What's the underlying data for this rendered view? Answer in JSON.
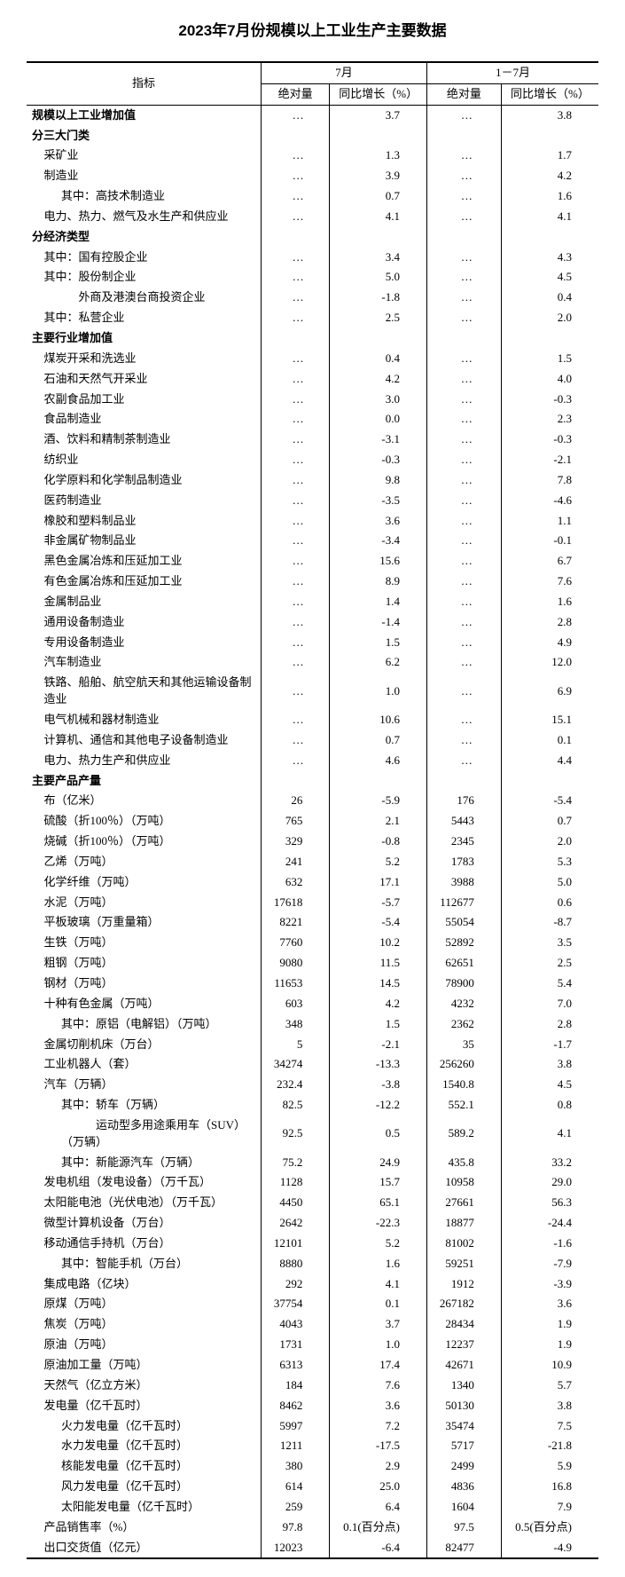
{
  "title": "2023年7月份规模以上工业生产主要数据",
  "header": {
    "indicator": "指标",
    "period1": "7月",
    "period2": "1－7月",
    "abs": "绝对量",
    "yoy": "同比增长（%）"
  },
  "dots": "…",
  "rows": [
    {
      "label": "规模以上工业增加值",
      "bold": true,
      "indent": 0,
      "v": [
        "…",
        "3.7",
        "…",
        "3.8"
      ]
    },
    {
      "label": "分三大门类",
      "bold": true,
      "indent": 0,
      "v": [
        "",
        "",
        "",
        ""
      ]
    },
    {
      "label": "采矿业",
      "indent": 1,
      "v": [
        "…",
        "1.3",
        "…",
        "1.7"
      ]
    },
    {
      "label": "制造业",
      "indent": 1,
      "v": [
        "…",
        "3.9",
        "…",
        "4.2"
      ]
    },
    {
      "label": "其中：高技术制造业",
      "indent": 2,
      "v": [
        "…",
        "0.7",
        "…",
        "1.6"
      ]
    },
    {
      "label": "电力、热力、燃气及水生产和供应业",
      "indent": 1,
      "v": [
        "…",
        "4.1",
        "…",
        "4.1"
      ]
    },
    {
      "label": "分经济类型",
      "bold": true,
      "indent": 0,
      "v": [
        "",
        "",
        "",
        ""
      ]
    },
    {
      "label": "其中：国有控股企业",
      "indent": 1,
      "v": [
        "…",
        "3.4",
        "…",
        "4.3"
      ]
    },
    {
      "label": "其中：股份制企业",
      "indent": 1,
      "v": [
        "…",
        "5.0",
        "…",
        "4.5"
      ]
    },
    {
      "label": "　　　外商及港澳台商投资企业",
      "indent": 1,
      "v": [
        "…",
        "-1.8",
        "…",
        "0.4"
      ]
    },
    {
      "label": "其中：私营企业",
      "indent": 1,
      "v": [
        "…",
        "2.5",
        "…",
        "2.0"
      ]
    },
    {
      "label": "主要行业增加值",
      "bold": true,
      "indent": 0,
      "v": [
        "",
        "",
        "",
        ""
      ]
    },
    {
      "label": "煤炭开采和洗选业",
      "indent": 1,
      "v": [
        "…",
        "0.4",
        "…",
        "1.5"
      ]
    },
    {
      "label": "石油和天然气开采业",
      "indent": 1,
      "v": [
        "…",
        "4.2",
        "…",
        "4.0"
      ]
    },
    {
      "label": "农副食品加工业",
      "indent": 1,
      "v": [
        "…",
        "3.0",
        "…",
        "-0.3"
      ]
    },
    {
      "label": "食品制造业",
      "indent": 1,
      "v": [
        "…",
        "0.0",
        "…",
        "2.3"
      ]
    },
    {
      "label": "酒、饮料和精制茶制造业",
      "indent": 1,
      "v": [
        "…",
        "-3.1",
        "…",
        "-0.3"
      ]
    },
    {
      "label": "纺织业",
      "indent": 1,
      "v": [
        "…",
        "-0.3",
        "…",
        "-2.1"
      ]
    },
    {
      "label": "化学原料和化学制品制造业",
      "indent": 1,
      "v": [
        "…",
        "9.8",
        "…",
        "7.8"
      ]
    },
    {
      "label": "医药制造业",
      "indent": 1,
      "v": [
        "…",
        "-3.5",
        "…",
        "-4.6"
      ]
    },
    {
      "label": "橡胶和塑料制品业",
      "indent": 1,
      "v": [
        "…",
        "3.6",
        "…",
        "1.1"
      ]
    },
    {
      "label": "非金属矿物制品业",
      "indent": 1,
      "v": [
        "…",
        "-3.4",
        "…",
        "-0.1"
      ]
    },
    {
      "label": "黑色金属冶炼和压延加工业",
      "indent": 1,
      "v": [
        "…",
        "15.6",
        "…",
        "6.7"
      ]
    },
    {
      "label": "有色金属冶炼和压延加工业",
      "indent": 1,
      "v": [
        "…",
        "8.9",
        "…",
        "7.6"
      ]
    },
    {
      "label": "金属制品业",
      "indent": 1,
      "v": [
        "…",
        "1.4",
        "…",
        "1.6"
      ]
    },
    {
      "label": "通用设备制造业",
      "indent": 1,
      "v": [
        "…",
        "-1.4",
        "…",
        "2.8"
      ]
    },
    {
      "label": "专用设备制造业",
      "indent": 1,
      "v": [
        "…",
        "1.5",
        "…",
        "4.9"
      ]
    },
    {
      "label": "汽车制造业",
      "indent": 1,
      "v": [
        "…",
        "6.2",
        "…",
        "12.0"
      ]
    },
    {
      "label": "铁路、船舶、航空航天和其他运输设备制造业",
      "indent": 1,
      "v": [
        "…",
        "1.0",
        "…",
        "6.9"
      ]
    },
    {
      "label": "电气机械和器材制造业",
      "indent": 1,
      "v": [
        "…",
        "10.6",
        "…",
        "15.1"
      ]
    },
    {
      "label": "计算机、通信和其他电子设备制造业",
      "indent": 1,
      "v": [
        "…",
        "0.7",
        "…",
        "0.1"
      ]
    },
    {
      "label": "电力、热力生产和供应业",
      "indent": 1,
      "v": [
        "…",
        "4.6",
        "…",
        "4.4"
      ]
    },
    {
      "label": "主要产品产量",
      "bold": true,
      "indent": 0,
      "v": [
        "",
        "",
        "",
        ""
      ]
    },
    {
      "label": "布（亿米）",
      "indent": 1,
      "v": [
        "26",
        "-5.9",
        "176",
        "-5.4"
      ]
    },
    {
      "label": "硫酸（折100％）（万吨）",
      "indent": 1,
      "v": [
        "765",
        "2.1",
        "5443",
        "0.7"
      ]
    },
    {
      "label": "烧碱（折100％）（万吨）",
      "indent": 1,
      "v": [
        "329",
        "-0.8",
        "2345",
        "2.0"
      ]
    },
    {
      "label": "乙烯（万吨）",
      "indent": 1,
      "v": [
        "241",
        "5.2",
        "1783",
        "5.3"
      ]
    },
    {
      "label": "化学纤维（万吨）",
      "indent": 1,
      "v": [
        "632",
        "17.1",
        "3988",
        "5.0"
      ]
    },
    {
      "label": "水泥（万吨）",
      "indent": 1,
      "v": [
        "17618",
        "-5.7",
        "112677",
        "0.6"
      ]
    },
    {
      "label": "平板玻璃（万重量箱）",
      "indent": 1,
      "v": [
        "8221",
        "-5.4",
        "55054",
        "-8.7"
      ]
    },
    {
      "label": "生铁（万吨）",
      "indent": 1,
      "v": [
        "7760",
        "10.2",
        "52892",
        "3.5"
      ]
    },
    {
      "label": "粗钢（万吨）",
      "indent": 1,
      "v": [
        "9080",
        "11.5",
        "62651",
        "2.5"
      ]
    },
    {
      "label": "钢材（万吨）",
      "indent": 1,
      "v": [
        "11653",
        "14.5",
        "78900",
        "5.4"
      ]
    },
    {
      "label": "十种有色金属（万吨）",
      "indent": 1,
      "v": [
        "603",
        "4.2",
        "4232",
        "7.0"
      ]
    },
    {
      "label": "其中：原铝（电解铝）（万吨）",
      "indent": 2,
      "v": [
        "348",
        "1.5",
        "2362",
        "2.8"
      ]
    },
    {
      "label": "金属切削机床（万台）",
      "indent": 1,
      "v": [
        "5",
        "-2.1",
        "35",
        "-1.7"
      ]
    },
    {
      "label": "工业机器人（套）",
      "indent": 1,
      "v": [
        "34274",
        "-13.3",
        "256260",
        "3.8"
      ]
    },
    {
      "label": "汽车（万辆）",
      "indent": 1,
      "v": [
        "232.4",
        "-3.8",
        "1540.8",
        "4.5"
      ]
    },
    {
      "label": "其中：轿车（万辆）",
      "indent": 2,
      "v": [
        "82.5",
        "-12.2",
        "552.1",
        "0.8"
      ]
    },
    {
      "label": "　　　运动型多用途乘用车（SUV）（万辆）",
      "indent": 2,
      "v": [
        "92.5",
        "0.5",
        "589.2",
        "4.1"
      ]
    },
    {
      "label": "其中：新能源汽车（万辆）",
      "indent": 2,
      "v": [
        "75.2",
        "24.9",
        "435.8",
        "33.2"
      ]
    },
    {
      "label": "发电机组（发电设备）（万千瓦）",
      "indent": 1,
      "v": [
        "1128",
        "15.7",
        "10958",
        "29.0"
      ]
    },
    {
      "label": "太阳能电池（光伏电池）（万千瓦）",
      "indent": 1,
      "v": [
        "4450",
        "65.1",
        "27661",
        "56.3"
      ]
    },
    {
      "label": "微型计算机设备（万台）",
      "indent": 1,
      "v": [
        "2642",
        "-22.3",
        "18877",
        "-24.4"
      ]
    },
    {
      "label": "移动通信手持机（万台）",
      "indent": 1,
      "v": [
        "12101",
        "5.2",
        "81002",
        "-1.6"
      ]
    },
    {
      "label": "其中：智能手机（万台）",
      "indent": 2,
      "v": [
        "8880",
        "1.6",
        "59251",
        "-7.9"
      ]
    },
    {
      "label": "集成电路（亿块）",
      "indent": 1,
      "v": [
        "292",
        "4.1",
        "1912",
        "-3.9"
      ]
    },
    {
      "label": "原煤（万吨）",
      "indent": 1,
      "v": [
        "37754",
        "0.1",
        "267182",
        "3.6"
      ]
    },
    {
      "label": "焦炭（万吨）",
      "indent": 1,
      "v": [
        "4043",
        "3.7",
        "28434",
        "1.9"
      ]
    },
    {
      "label": "原油（万吨）",
      "indent": 1,
      "v": [
        "1731",
        "1.0",
        "12237",
        "1.9"
      ]
    },
    {
      "label": "原油加工量（万吨）",
      "indent": 1,
      "v": [
        "6313",
        "17.4",
        "42671",
        "10.9"
      ]
    },
    {
      "label": "天然气（亿立方米）",
      "indent": 1,
      "v": [
        "184",
        "7.6",
        "1340",
        "5.7"
      ]
    },
    {
      "label": "发电量（亿千瓦时）",
      "indent": 1,
      "v": [
        "8462",
        "3.6",
        "50130",
        "3.8"
      ]
    },
    {
      "label": "火力发电量（亿千瓦时）",
      "indent": 2,
      "v": [
        "5997",
        "7.2",
        "35474",
        "7.5"
      ]
    },
    {
      "label": "水力发电量（亿千瓦时）",
      "indent": 2,
      "v": [
        "1211",
        "-17.5",
        "5717",
        "-21.8"
      ]
    },
    {
      "label": "核能发电量（亿千瓦时）",
      "indent": 2,
      "v": [
        "380",
        "2.9",
        "2499",
        "5.9"
      ]
    },
    {
      "label": "风力发电量（亿千瓦时）",
      "indent": 2,
      "v": [
        "614",
        "25.0",
        "4836",
        "16.8"
      ]
    },
    {
      "label": "太阳能发电量（亿千瓦时）",
      "indent": 2,
      "v": [
        "259",
        "6.4",
        "1604",
        "7.9"
      ]
    },
    {
      "label": "产品销售率（%）",
      "indent": 1,
      "v": [
        "97.8",
        "0.1(百分点)",
        "97.5",
        "0.5(百分点)"
      ]
    },
    {
      "label": "出口交货值（亿元）",
      "indent": 1,
      "v": [
        "12023",
        "-6.4",
        "82477",
        "-4.9"
      ]
    }
  ]
}
